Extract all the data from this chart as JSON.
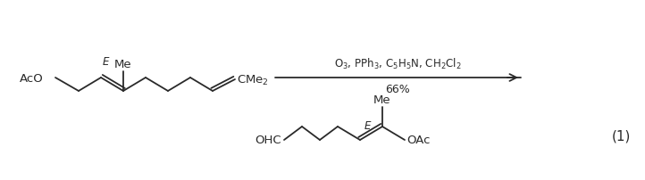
{
  "bg_color": "#ffffff",
  "text_color": "#2a2a2a",
  "figsize": [
    7.22,
    2.03
  ],
  "dpi": 100,
  "reagents_line1": "O$_3$, PPh$_3$, C$_5$H$_5$N, CH$_2$Cl$_2$",
  "reagents_line2": "66%",
  "equation_number": "(1)",
  "reactant_AcO": "AcO",
  "reactant_E": "E",
  "reactant_Me": "Me",
  "reactant_CMe2": "CMe$_2$",
  "product_OHC": "OHC",
  "product_OAc": "OAc",
  "product_E": "E",
  "product_Me": "Me",
  "font_size_labels": 9.5,
  "font_size_stereo": 9,
  "font_size_reagents": 8.5,
  "font_size_eq": 11
}
